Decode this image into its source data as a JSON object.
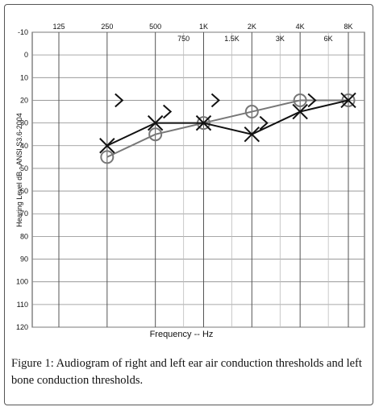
{
  "chart_data": {
    "type": "line",
    "title": "",
    "ylabel": "Hearing Level dB - ANSI S3.6-2004",
    "xlabel": "Frequency -- Hz",
    "ylim": [
      -10,
      120
    ],
    "y_inverted": true,
    "x_scale": "log",
    "y_ticks": [
      -10,
      0,
      10,
      20,
      30,
      40,
      50,
      60,
      70,
      80,
      90,
      100,
      110,
      120
    ],
    "y_tick_labels": [
      "-10",
      "0",
      "10",
      "20",
      "30",
      "40",
      "50",
      "60",
      "70",
      "80",
      "90",
      "100",
      "110",
      "120"
    ],
    "x_ticks_major": [
      {
        "value": 125,
        "label": "125"
      },
      {
        "value": 250,
        "label": "250"
      },
      {
        "value": 500,
        "label": "500"
      },
      {
        "value": 1000,
        "label": "1K"
      },
      {
        "value": 2000,
        "label": "2K"
      },
      {
        "value": 4000,
        "label": "4K"
      },
      {
        "value": 8000,
        "label": "8K"
      }
    ],
    "x_ticks_minor": [
      {
        "value": 750,
        "label": "750"
      },
      {
        "value": 1500,
        "label": "1.5K"
      },
      {
        "value": 3000,
        "label": "3K"
      },
      {
        "value": 6000,
        "label": "6K"
      }
    ],
    "grid": true,
    "series": [
      {
        "marker": "circle",
        "color": "#777777",
        "x": [
          250,
          500,
          1000,
          2000,
          4000,
          8000
        ],
        "y": [
          45,
          35,
          30,
          25,
          20,
          20
        ]
      },
      {
        "marker": "x",
        "color": "#111111",
        "x": [
          250,
          500,
          1000,
          2000,
          4000,
          8000
        ],
        "y": [
          40,
          30,
          30,
          35,
          25,
          20
        ]
      },
      {
        "marker": "bracket-right",
        "color": "#111111",
        "connected": false,
        "x": [
          250,
          500,
          1000,
          2000,
          4000
        ],
        "y": [
          20,
          25,
          20,
          30,
          20
        ]
      }
    ]
  },
  "caption": {
    "label": "Figure 1:",
    "text": " Audiogram of right and left ear air conduction thresholds and left bone conduction thresholds."
  }
}
